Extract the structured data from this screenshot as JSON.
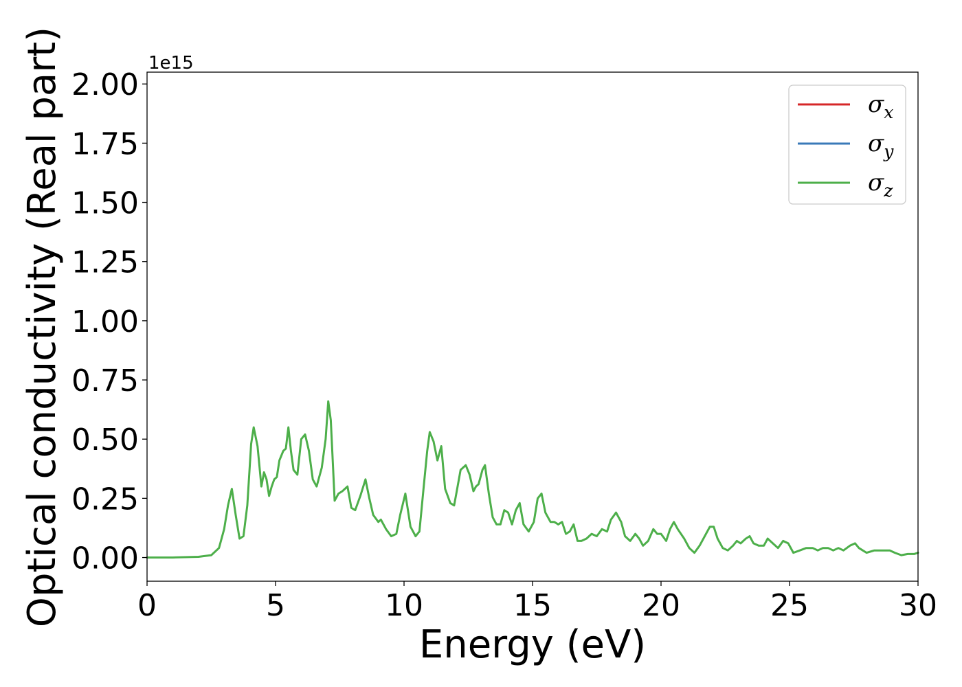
{
  "chart_data": {
    "type": "line",
    "xlabel": "Energy (eV)",
    "ylabel": "Optical conductivity (Real part)",
    "y_offset_text": "1e15",
    "xlim": [
      0,
      30
    ],
    "ylim": [
      -0.1,
      2.05
    ],
    "xticks": [
      0,
      5,
      10,
      15,
      20,
      25,
      30
    ],
    "xtick_labels": [
      "0",
      "5",
      "10",
      "15",
      "20",
      "25",
      "30"
    ],
    "yticks": [
      0.0,
      0.25,
      0.5,
      0.75,
      1.0,
      1.25,
      1.5,
      1.75,
      2.0
    ],
    "ytick_labels": [
      "0.00",
      "0.25",
      "0.50",
      "0.75",
      "1.00",
      "1.25",
      "1.50",
      "1.75",
      "2.00"
    ],
    "grid": false,
    "legend_position": "top-right",
    "series": [
      {
        "name": "σx",
        "base": "σ",
        "subscript": "x",
        "color": "#d62728",
        "width": 2.2
      },
      {
        "name": "σy",
        "base": "σ",
        "subscript": "y",
        "color": "#3a7ab8",
        "width": 2.2
      },
      {
        "name": "σz",
        "base": "σ",
        "subscript": "z",
        "color": "#4daf4a",
        "width": 3
      }
    ],
    "x": [
      0,
      1,
      2,
      2.5,
      2.8,
      3.0,
      3.15,
      3.3,
      3.45,
      3.6,
      3.75,
      3.9,
      4.05,
      4.15,
      4.3,
      4.45,
      4.55,
      4.65,
      4.75,
      4.85,
      4.95,
      5.05,
      5.15,
      5.3,
      5.4,
      5.5,
      5.6,
      5.7,
      5.85,
      6.0,
      6.15,
      6.3,
      6.45,
      6.6,
      6.8,
      6.95,
      7.05,
      7.15,
      7.3,
      7.45,
      7.6,
      7.8,
      7.95,
      8.1,
      8.3,
      8.5,
      8.65,
      8.8,
      9.0,
      9.1,
      9.3,
      9.5,
      9.7,
      9.85,
      10.05,
      10.25,
      10.45,
      10.6,
      10.75,
      10.9,
      11.0,
      11.15,
      11.3,
      11.45,
      11.6,
      11.8,
      11.95,
      12.05,
      12.2,
      12.4,
      12.55,
      12.7,
      12.8,
      12.9,
      13.05,
      13.15,
      13.3,
      13.45,
      13.6,
      13.75,
      13.9,
      14.05,
      14.2,
      14.35,
      14.5,
      14.65,
      14.85,
      15.05,
      15.2,
      15.35,
      15.5,
      15.7,
      15.85,
      16.0,
      16.15,
      16.3,
      16.45,
      16.6,
      16.75,
      16.9,
      17.1,
      17.3,
      17.5,
      17.7,
      17.9,
      18.05,
      18.25,
      18.45,
      18.6,
      18.8,
      19.0,
      19.15,
      19.3,
      19.5,
      19.7,
      19.85,
      20.0,
      20.2,
      20.35,
      20.5,
      20.65,
      20.9,
      21.1,
      21.3,
      21.5,
      21.7,
      21.9,
      22.05,
      22.2,
      22.4,
      22.6,
      22.8,
      22.95,
      23.1,
      23.3,
      23.45,
      23.6,
      23.8,
      24.0,
      24.15,
      24.35,
      24.55,
      24.75,
      24.95,
      25.15,
      25.4,
      25.65,
      25.9,
      26.1,
      26.3,
      26.5,
      26.7,
      26.9,
      27.1,
      27.35,
      27.55,
      27.7,
      27.85,
      28.0,
      28.3,
      28.6,
      28.9,
      29.1,
      29.35,
      29.6,
      29.85,
      30.0
    ],
    "y": [
      0.0,
      0.0,
      0.003,
      0.01,
      0.04,
      0.12,
      0.22,
      0.29,
      0.18,
      0.08,
      0.09,
      0.22,
      0.48,
      0.55,
      0.47,
      0.3,
      0.36,
      0.33,
      0.26,
      0.3,
      0.33,
      0.34,
      0.41,
      0.45,
      0.46,
      0.55,
      0.45,
      0.37,
      0.35,
      0.5,
      0.52,
      0.45,
      0.33,
      0.3,
      0.38,
      0.5,
      0.66,
      0.58,
      0.24,
      0.27,
      0.28,
      0.3,
      0.21,
      0.2,
      0.26,
      0.33,
      0.25,
      0.18,
      0.15,
      0.16,
      0.12,
      0.09,
      0.1,
      0.18,
      0.27,
      0.13,
      0.09,
      0.11,
      0.28,
      0.45,
      0.53,
      0.49,
      0.41,
      0.47,
      0.29,
      0.23,
      0.22,
      0.28,
      0.37,
      0.39,
      0.35,
      0.28,
      0.3,
      0.31,
      0.37,
      0.39,
      0.27,
      0.17,
      0.14,
      0.14,
      0.2,
      0.19,
      0.14,
      0.2,
      0.23,
      0.14,
      0.11,
      0.15,
      0.25,
      0.27,
      0.19,
      0.15,
      0.15,
      0.14,
      0.15,
      0.1,
      0.11,
      0.14,
      0.07,
      0.07,
      0.08,
      0.1,
      0.09,
      0.12,
      0.11,
      0.16,
      0.19,
      0.15,
      0.09,
      0.07,
      0.1,
      0.08,
      0.05,
      0.07,
      0.12,
      0.1,
      0.1,
      0.07,
      0.12,
      0.15,
      0.12,
      0.08,
      0.04,
      0.02,
      0.05,
      0.09,
      0.13,
      0.13,
      0.08,
      0.04,
      0.03,
      0.05,
      0.07,
      0.06,
      0.08,
      0.09,
      0.06,
      0.05,
      0.05,
      0.08,
      0.06,
      0.04,
      0.07,
      0.06,
      0.02,
      0.03,
      0.04,
      0.04,
      0.03,
      0.04,
      0.04,
      0.03,
      0.04,
      0.03,
      0.05,
      0.06,
      0.04,
      0.03,
      0.02,
      0.03,
      0.03,
      0.03,
      0.02,
      0.01,
      0.015,
      0.015,
      0.02
    ]
  }
}
